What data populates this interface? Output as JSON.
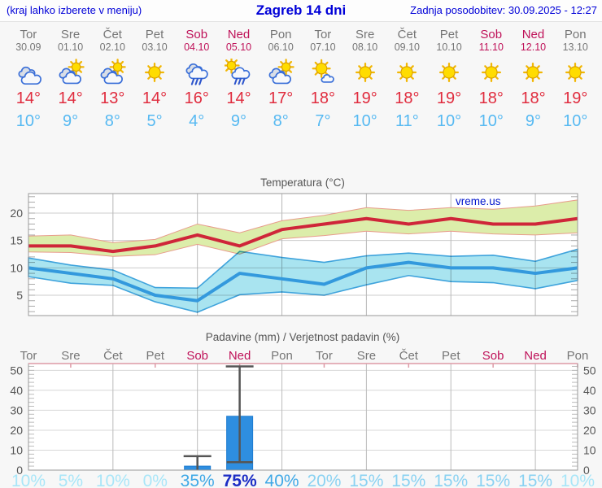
{
  "header": {
    "location_hint": "(kraj lahko izberete v meniju)",
    "title": "Zagreb 14 dni",
    "updated": "Zadnja posodobitev: 30.09.2025 - 12:27"
  },
  "colors": {
    "link_blue": "#0000d8",
    "weekday_text": "#767676",
    "weekend_text": "#bf1259",
    "tmax_text": "#e02c3e",
    "tmin_text": "#56b9f2",
    "tmax_line": "#cf2639",
    "tmax_band": "#dcedaa",
    "tmax_band_edge": "#e89c8c",
    "tmin_line": "#3399dd",
    "tmin_band": "#a9e4f0",
    "tmin_band_edge": "#3fa3dc",
    "bar_fill": "#2e8ee0",
    "bar_edge": "#1d7bd0",
    "whisker": "#555555",
    "prob_navy": "#1c2dc5",
    "prob_mid": "#3fa8e6",
    "prob_light": "#8ad2f2",
    "prob_faint": "#a9e6f8"
  },
  "forecast": {
    "days": [
      {
        "name": "Tor",
        "date": "30.09",
        "weekend": false,
        "icon": "cloudy",
        "tmax": "14°",
        "tmin": "10°"
      },
      {
        "name": "Sre",
        "date": "01.10",
        "weekend": false,
        "icon": "partly-cloudy",
        "tmax": "14°",
        "tmin": "9°"
      },
      {
        "name": "Čet",
        "date": "02.10",
        "weekend": false,
        "icon": "partly-cloudy",
        "tmax": "13°",
        "tmin": "8°"
      },
      {
        "name": "Pet",
        "date": "03.10",
        "weekend": false,
        "icon": "sunny",
        "tmax": "14°",
        "tmin": "5°"
      },
      {
        "name": "Sob",
        "date": "04.10",
        "weekend": true,
        "icon": "rain",
        "tmax": "16°",
        "tmin": "4°"
      },
      {
        "name": "Ned",
        "date": "05.10",
        "weekend": true,
        "icon": "sun-rain",
        "tmax": "14°",
        "tmin": "9°"
      },
      {
        "name": "Pon",
        "date": "06.10",
        "weekend": false,
        "icon": "partly-cloudy",
        "tmax": "17°",
        "tmin": "8°"
      },
      {
        "name": "Tor",
        "date": "07.10",
        "weekend": false,
        "icon": "mostly-sunny",
        "tmax": "18°",
        "tmin": "7°"
      },
      {
        "name": "Sre",
        "date": "08.10",
        "weekend": false,
        "icon": "sunny",
        "tmax": "19°",
        "tmin": "10°"
      },
      {
        "name": "Čet",
        "date": "09.10",
        "weekend": false,
        "icon": "sunny",
        "tmax": "18°",
        "tmin": "11°"
      },
      {
        "name": "Pet",
        "date": "10.10",
        "weekend": false,
        "icon": "sunny",
        "tmax": "19°",
        "tmin": "10°"
      },
      {
        "name": "Sob",
        "date": "11.10",
        "weekend": true,
        "icon": "sunny",
        "tmax": "18°",
        "tmin": "10°"
      },
      {
        "name": "Ned",
        "date": "12.10",
        "weekend": true,
        "icon": "sunny",
        "tmax": "18°",
        "tmin": "9°"
      },
      {
        "name": "Pon",
        "date": "13.10",
        "weekend": false,
        "icon": "sunny",
        "tmax": "19°",
        "tmin": "10°"
      }
    ]
  },
  "chart_data": [
    {
      "type": "line",
      "title": "Temperatura (°C)",
      "watermark": "vreme.us",
      "x": [
        0,
        1,
        2,
        3,
        4,
        5,
        6,
        7,
        8,
        9,
        10,
        11,
        12,
        13
      ],
      "series": [
        {
          "name": "tmax",
          "values": [
            14,
            14,
            13,
            14,
            16,
            14,
            17,
            18,
            19,
            18,
            19,
            18,
            18,
            19
          ]
        },
        {
          "name": "tmax_hi",
          "values": [
            15.8,
            16.0,
            14.6,
            15.2,
            18.0,
            16.4,
            18.6,
            19.6,
            21.0,
            20.5,
            21.0,
            20.7,
            21.3,
            22.4
          ]
        },
        {
          "name": "tmax_lo",
          "values": [
            12.9,
            12.8,
            12.1,
            12.4,
            14.3,
            12.5,
            15.3,
            15.9,
            16.7,
            16.2,
            16.7,
            16.2,
            16.0,
            16.4
          ]
        },
        {
          "name": "tmin",
          "values": [
            10,
            9,
            8,
            5,
            4,
            9,
            8,
            7,
            10,
            11,
            10,
            10,
            9,
            10
          ]
        },
        {
          "name": "tmin_hi",
          "values": [
            11.8,
            10.5,
            9.6,
            6.4,
            6.3,
            13.0,
            11.9,
            11.0,
            12.2,
            12.7,
            12.1,
            12.3,
            11.2,
            13.4
          ]
        },
        {
          "name": "tmin_lo",
          "values": [
            8.4,
            7.2,
            6.8,
            3.8,
            1.9,
            5.1,
            5.6,
            5.0,
            6.9,
            8.6,
            7.5,
            7.3,
            6.2,
            7.7
          ]
        }
      ],
      "ylim": [
        1.3,
        23.6
      ],
      "yticks": [
        5,
        10,
        15,
        20
      ],
      "grid": true,
      "legend_position": "none"
    },
    {
      "type": "bar",
      "title": "Padavine (mm) / Verjetnost padavin (%)",
      "categories": [
        "Tor",
        "Sre",
        "Čet",
        "Pet",
        "Sob",
        "Ned",
        "Pon",
        "Tor",
        "Sre",
        "Čet",
        "Pet",
        "Sob",
        "Ned",
        "Pon"
      ],
      "weekend": [
        false,
        false,
        false,
        false,
        true,
        true,
        false,
        false,
        false,
        false,
        false,
        true,
        true,
        false
      ],
      "values": [
        0,
        0,
        0,
        0,
        2,
        27,
        0,
        0,
        0,
        0,
        0,
        0,
        0,
        0
      ],
      "whisker_hi": [
        null,
        null,
        null,
        null,
        7,
        52,
        null,
        null,
        null,
        null,
        null,
        null,
        null,
        null
      ],
      "whisker_lo": [
        null,
        null,
        null,
        null,
        0,
        4,
        null,
        null,
        null,
        null,
        null,
        null,
        null,
        null
      ],
      "probabilities": [
        10,
        5,
        10,
        0,
        35,
        75,
        40,
        20,
        15,
        15,
        15,
        15,
        15,
        10
      ],
      "prob_suffix": "%",
      "ylim": [
        0,
        53
      ],
      "yticks": [
        0,
        10,
        20,
        30,
        40,
        50
      ],
      "grid": true
    }
  ]
}
